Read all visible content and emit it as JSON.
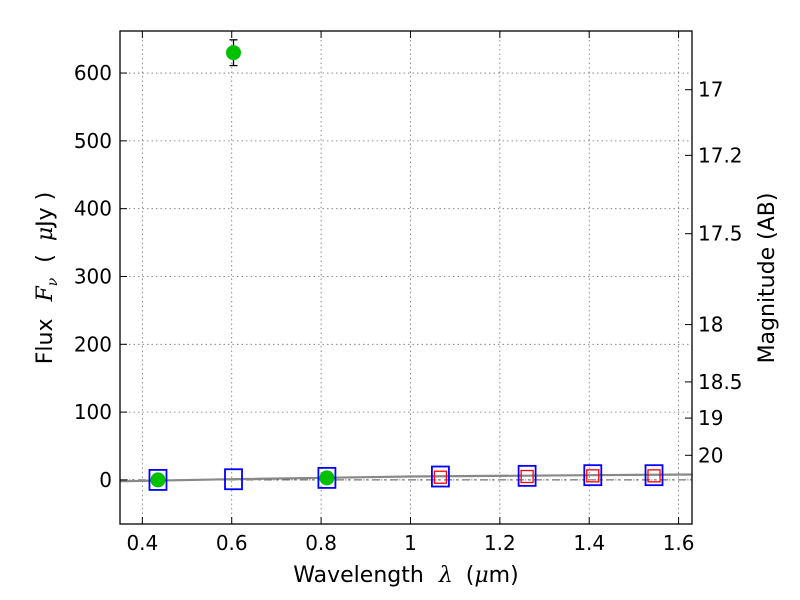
{
  "chart_data": {
    "type": "scatter",
    "title": "",
    "xlabel_parts": {
      "text": "Wavelength",
      "symbol": "λ",
      "unit_open": "(",
      "unit_symbol": "μ",
      "unit_rest": "m)"
    },
    "ylabel_parts": {
      "text": "Flux",
      "symbol": "F",
      "subscript": "ν",
      "unit_open": "(",
      "unit_symbol": "μ",
      "unit_rest": "Jy )"
    },
    "y2label": "Magnitude (AB)",
    "xlim": [
      0.35,
      1.63
    ],
    "ylim": [
      -65,
      662
    ],
    "x_ticks": [
      {
        "value": 0.4,
        "label": "0.4"
      },
      {
        "value": 0.6,
        "label": "0.6"
      },
      {
        "value": 0.8,
        "label": "0.8"
      },
      {
        "value": 1.0,
        "label": "1"
      },
      {
        "value": 1.2,
        "label": "1.2"
      },
      {
        "value": 1.4,
        "label": "1.4"
      },
      {
        "value": 1.6,
        "label": "1.6"
      }
    ],
    "y_ticks": [
      {
        "value": 0,
        "label": "0"
      },
      {
        "value": 100,
        "label": "100"
      },
      {
        "value": 200,
        "label": "200"
      },
      {
        "value": 300,
        "label": "300"
      },
      {
        "value": 400,
        "label": "400"
      },
      {
        "value": 500,
        "label": "500"
      },
      {
        "value": 600,
        "label": "600"
      }
    ],
    "y2_ticks": [
      {
        "value": 17,
        "label": "17"
      },
      {
        "value": 17.2,
        "label": "17.2"
      },
      {
        "value": 17.5,
        "label": "17.5"
      },
      {
        "value": 18,
        "label": "18"
      },
      {
        "value": 18.5,
        "label": "18.5"
      },
      {
        "value": 19,
        "label": "19"
      },
      {
        "value": 20,
        "label": "20"
      }
    ],
    "grid": true,
    "series": [
      {
        "marker": "circle",
        "color": "#00c000",
        "points": [
          {
            "x": 0.435,
            "y": 0,
            "err": 0
          },
          {
            "x": 0.604,
            "y": 630,
            "err": 19
          },
          {
            "x": 0.813,
            "y": 3,
            "err": 0
          }
        ]
      },
      {
        "marker": "open-square",
        "color": "#0000ff",
        "points": [
          {
            "x": 0.435,
            "y": 0
          },
          {
            "x": 0.604,
            "y": 1
          },
          {
            "x": 0.813,
            "y": 3
          },
          {
            "x": 1.067,
            "y": 5
          },
          {
            "x": 1.261,
            "y": 6
          },
          {
            "x": 1.408,
            "y": 7
          },
          {
            "x": 1.545,
            "y": 7
          }
        ]
      },
      {
        "marker": "open-square-small",
        "color": "#ff0000",
        "points": [
          {
            "x": 1.067,
            "y": 4
          },
          {
            "x": 1.261,
            "y": 5
          },
          {
            "x": 1.408,
            "y": 6
          },
          {
            "x": 1.545,
            "y": 6
          }
        ]
      }
    ],
    "model_curve": {
      "color": "#888888",
      "points": [
        {
          "x": 0.35,
          "y": -2
        },
        {
          "x": 0.6,
          "y": 1
        },
        {
          "x": 1.0,
          "y": 5
        },
        {
          "x": 1.4,
          "y": 7
        },
        {
          "x": 1.63,
          "y": 8
        }
      ]
    },
    "baseline": {
      "y": 0,
      "color": "#555555",
      "style": "dash-dot"
    }
  }
}
